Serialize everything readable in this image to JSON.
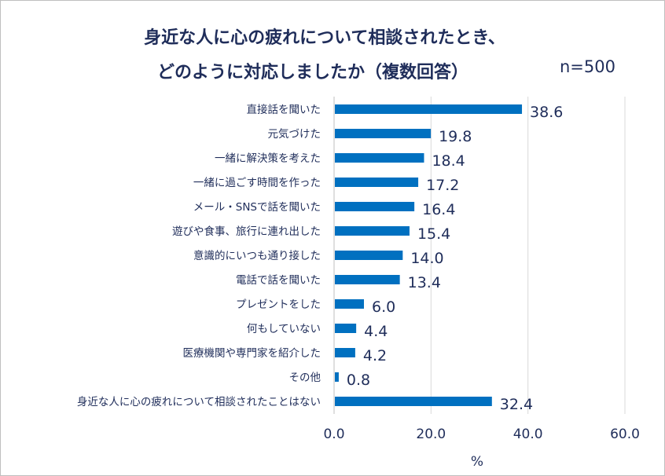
{
  "chart_data": {
    "type": "bar",
    "orientation": "horizontal",
    "title_lines": [
      "身近な人に心の疲れについて相談されたとき、",
      "どのように対応しましたか（複数回答）"
    ],
    "sample_size": "n=500",
    "categories": [
      "直接話を聞いた",
      "元気づけた",
      "一緒に解決策を考えた",
      "一緒に過ごす時間を作った",
      "メール・SNSで話を聞いた",
      "遊びや食事、旅行に連れ出した",
      "意識的にいつも通り接した",
      "電話で話を聞いた",
      "プレゼントをした",
      "何もしていない",
      "医療機関や専門家を紹介した",
      "その他",
      "身近な人に心の疲れについて相談されたことはない"
    ],
    "values": [
      38.6,
      19.8,
      18.4,
      17.2,
      16.4,
      15.4,
      14.0,
      13.4,
      6.0,
      4.4,
      4.2,
      0.8,
      32.4
    ],
    "data_labels": [
      "38.6",
      "19.8",
      "18.4",
      "17.2",
      "16.4",
      "15.4",
      "14.0",
      "13.4",
      "6.0",
      "4.4",
      "4.2",
      "0.8",
      "32.4"
    ],
    "xlim": [
      0,
      60
    ],
    "xticks": [
      "0.0",
      "20.0",
      "40.0",
      "60.0"
    ],
    "xlabel": "%",
    "grid": true,
    "colors": {
      "bar": "#0070c0",
      "text": "#1f2d5a",
      "grid": "#d9d9d9"
    }
  }
}
